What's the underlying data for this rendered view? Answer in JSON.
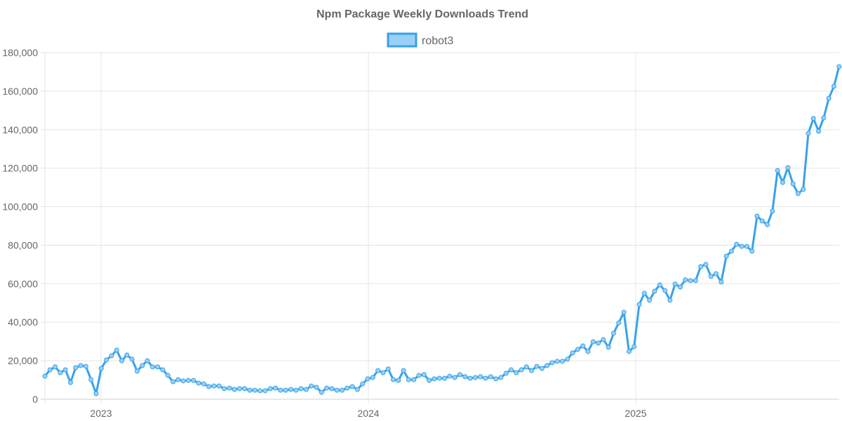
{
  "chart_data": {
    "type": "line",
    "title": "Npm Package Weekly Downloads Trend",
    "xlabel": "",
    "ylabel": "",
    "ylim": [
      0,
      180000
    ],
    "y_ticks": [
      "0",
      "20,000",
      "40,000",
      "60,000",
      "80,000",
      "100,000",
      "120,000",
      "140,000",
      "160,000",
      "180,000"
    ],
    "y_tick_values": [
      0,
      20000,
      40000,
      60000,
      80000,
      100000,
      120000,
      140000,
      160000,
      180000
    ],
    "x_ticks": [
      {
        "label": "2023",
        "year": 2023
      },
      {
        "label": "2024",
        "year": 2024
      },
      {
        "label": "2025",
        "year": 2025
      }
    ],
    "x_start_year": 2022.79,
    "x_step_weeks": 1,
    "grid": true,
    "legend_position": "top-center",
    "colors": {
      "line": "#36a2eb",
      "fill": "#9ad0f5",
      "grid": "#e5e5e5",
      "text": "#666666"
    },
    "series": [
      {
        "name": "robot3",
        "values": [
          12000,
          15300,
          16800,
          13800,
          15300,
          8700,
          16400,
          17500,
          17100,
          10200,
          2900,
          16000,
          20400,
          22600,
          25500,
          20000,
          23000,
          20800,
          14600,
          17500,
          20000,
          16800,
          16800,
          15300,
          12400,
          9100,
          10200,
          9500,
          9800,
          9800,
          8400,
          8000,
          6600,
          6900,
          6900,
          5500,
          5800,
          5100,
          5500,
          5500,
          4700,
          4700,
          4400,
          4400,
          5500,
          5800,
          4700,
          4700,
          5100,
          4700,
          5500,
          5100,
          6900,
          6200,
          3600,
          5800,
          5500,
          4700,
          4700,
          5800,
          6600,
          5100,
          8000,
          10600,
          11300,
          14900,
          13800,
          15700,
          10200,
          9800,
          14900,
          10200,
          10200,
          12400,
          12800,
          9800,
          10600,
          10900,
          10900,
          12000,
          11300,
          12800,
          11700,
          10900,
          11300,
          11700,
          10900,
          11700,
          10600,
          11300,
          13500,
          15300,
          13800,
          15300,
          16800,
          14900,
          17100,
          16000,
          17500,
          19000,
          19700,
          19700,
          20800,
          24100,
          25900,
          27700,
          24800,
          29900,
          29200,
          31000,
          27000,
          34300,
          39700,
          45200,
          24800,
          27300,
          49200,
          55000,
          51400,
          56100,
          59400,
          56500,
          51400,
          59800,
          58300,
          62000,
          61600,
          61600,
          68900,
          70000,
          63800,
          65200,
          60900,
          74300,
          76900,
          80500,
          79400,
          79400,
          76900,
          95100,
          92600,
          90700,
          97700,
          118800,
          112600,
          120300,
          111900,
          106800,
          109000,
          138100,
          145800,
          139200,
          146100,
          156300,
          162500,
          172700
        ]
      }
    ]
  }
}
